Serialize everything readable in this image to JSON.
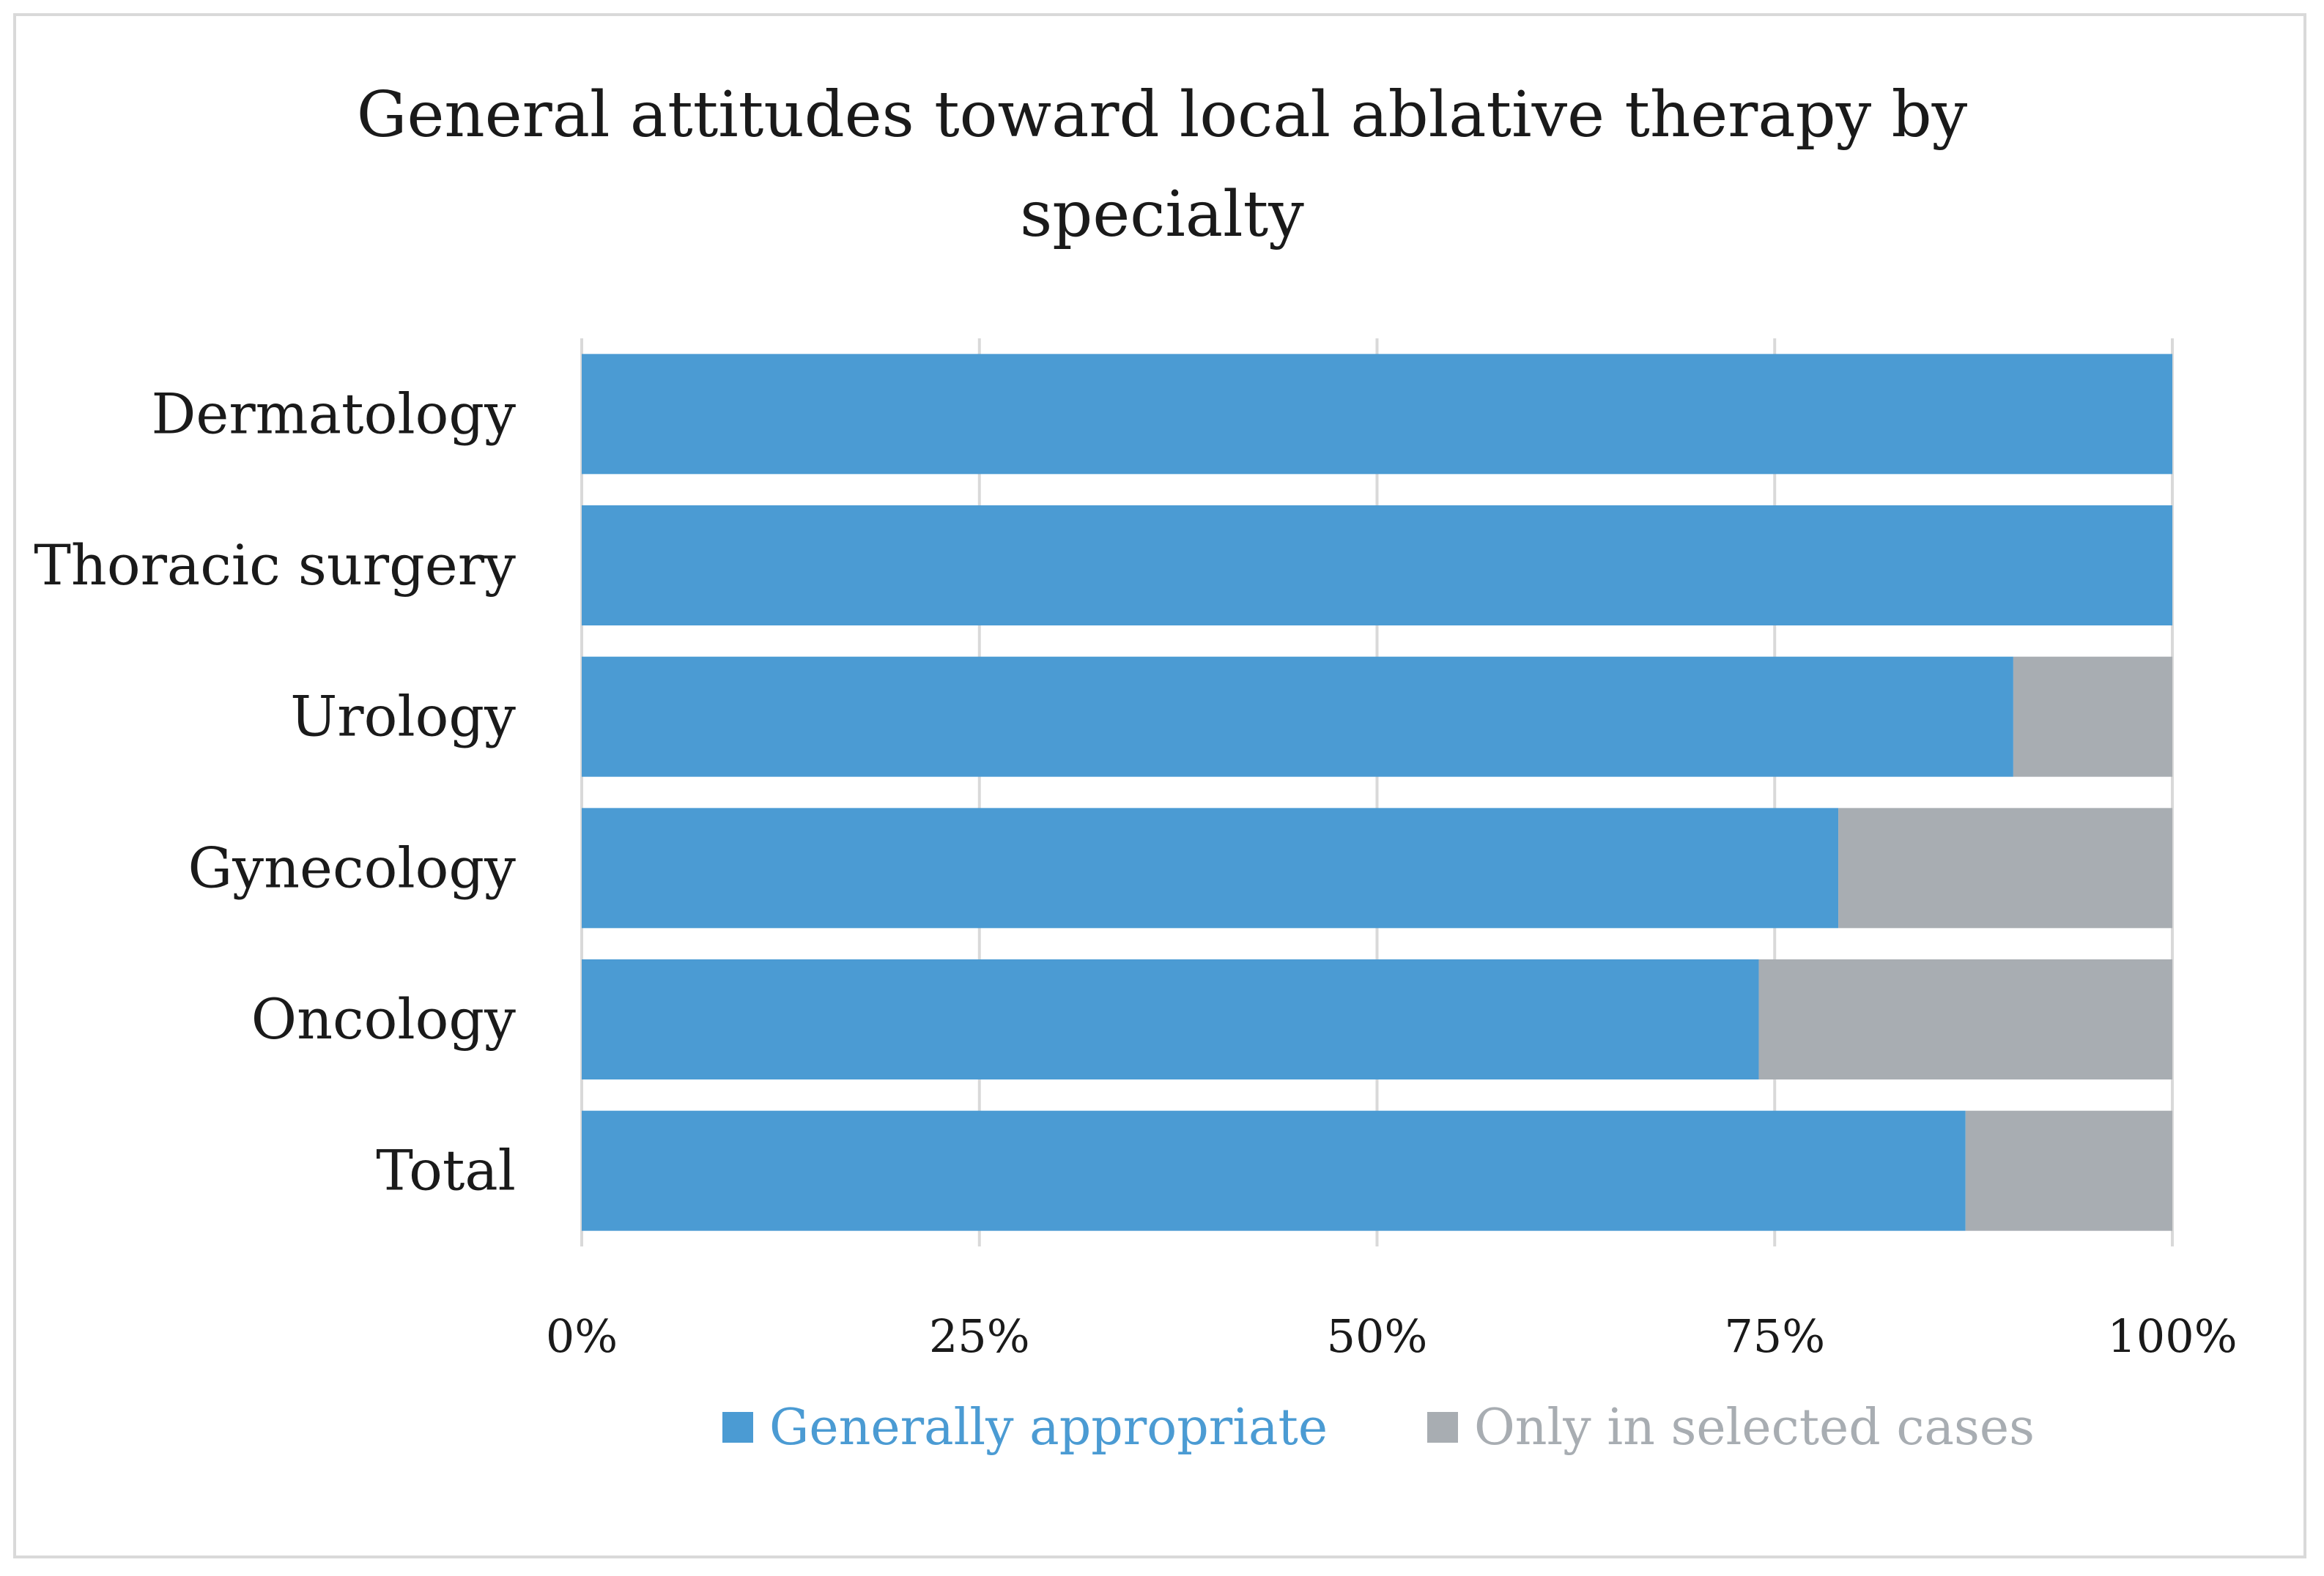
{
  "chart_data": {
    "type": "bar",
    "orientation": "horizontal",
    "stacked": true,
    "title_lines": [
      "General attitudes toward local ablative therapy by",
      "specialty"
    ],
    "categories": [
      "Dermatology",
      "Thoracic surgery",
      "Urology",
      "Gynecology",
      "Oncology",
      "Total"
    ],
    "series": [
      {
        "name": "Generally appropriate",
        "color": "#4b9bd3",
        "values": [
          100,
          100,
          90,
          79,
          74,
          87
        ]
      },
      {
        "name": "Only in selected cases",
        "color": "#a8adb2",
        "values": [
          0,
          0,
          10,
          21,
          26,
          13
        ]
      }
    ],
    "xlim": [
      0,
      100
    ],
    "xticks": [
      0,
      25,
      50,
      75,
      100
    ],
    "xtick_labels": [
      "0%",
      "25%",
      "50%",
      "75%",
      "100%"
    ],
    "grid": true,
    "grid_color": "#d9d9d9",
    "legend_position": "bottom"
  }
}
